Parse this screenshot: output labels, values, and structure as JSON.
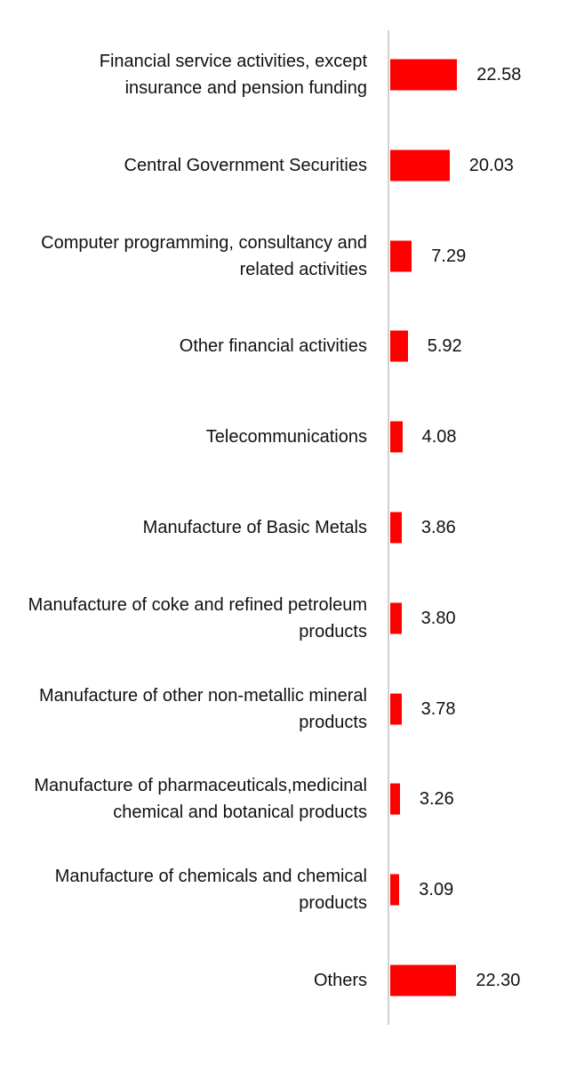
{
  "chart_data": {
    "type": "bar",
    "orientation": "horizontal",
    "categories": [
      "Financial service activities, except insurance and pension funding",
      "Central Government Securities",
      "Computer programming, consultancy and related activities",
      "Other financial activities",
      "Telecommunications",
      "Manufacture of Basic Metals",
      "Manufacture of coke and refined petroleum products",
      "Manufacture of other non-metallic mineral products",
      "Manufacture of pharmaceuticals,medicinal chemical and botanical products",
      "Manufacture of chemicals and chemical products",
      "Others"
    ],
    "values": [
      22.58,
      20.03,
      7.29,
      5.92,
      4.08,
      3.86,
      3.8,
      3.78,
      3.26,
      3.09,
      22.3
    ],
    "value_labels": [
      "22.58",
      "20.03",
      "7.29",
      "5.92",
      "4.08",
      "3.86",
      "3.80",
      "3.78",
      "3.26",
      "3.09",
      "22.30"
    ],
    "color": "#ff0000",
    "xlim": [
      0,
      60
    ]
  }
}
